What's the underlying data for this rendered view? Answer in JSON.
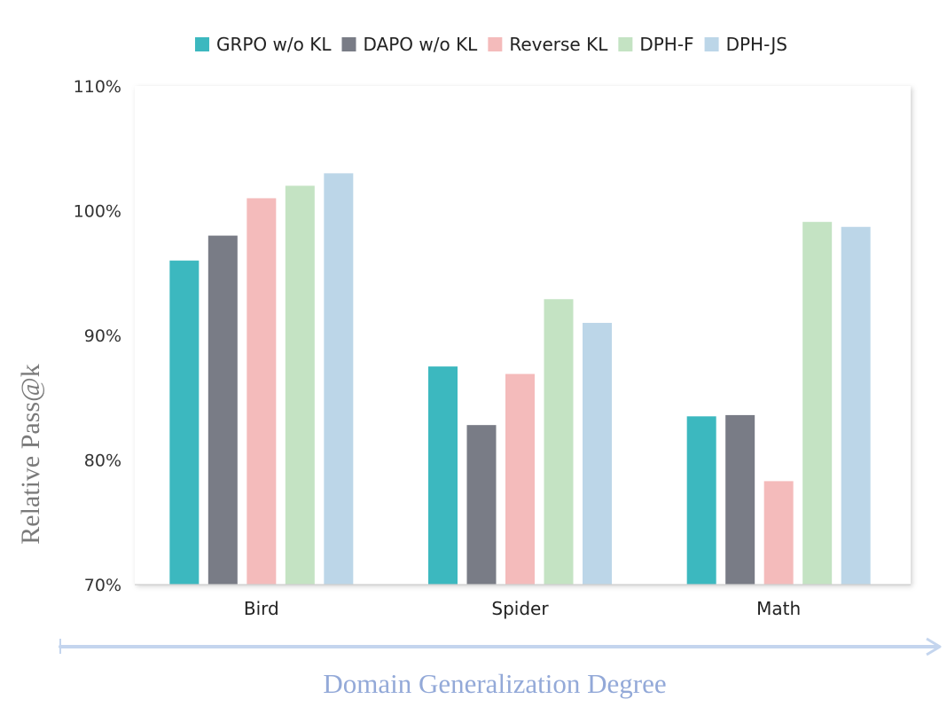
{
  "chart_data": {
    "type": "bar",
    "title": "",
    "categories": [
      "Bird",
      "Spider",
      "Math"
    ],
    "series": [
      {
        "name": "GRPO w/o KL",
        "color": "#3cb8bf",
        "values": [
          96.0,
          87.5,
          83.5
        ]
      },
      {
        "name": "DAPO w/o KL",
        "color": "#797c86",
        "values": [
          98.0,
          82.8,
          83.6
        ]
      },
      {
        "name": "Reverse KL",
        "color": "#f4bbbb",
        "values": [
          101.0,
          86.9,
          78.3
        ]
      },
      {
        "name": "DPH-F",
        "color": "#c4e3c3",
        "values": [
          102.0,
          92.9,
          99.1
        ]
      },
      {
        "name": "DPH-JS",
        "color": "#bcd6e8",
        "values": [
          103.0,
          91.0,
          98.7
        ]
      }
    ],
    "ylabel": "Relative Pass@k",
    "xlabel": "Domain Generalization Degree",
    "ylim": [
      70,
      110
    ],
    "yticks": [
      70,
      80,
      90,
      100,
      110
    ],
    "ytick_labels": [
      "70%",
      "80%",
      "90%",
      "100%",
      "110%"
    ],
    "legend_position": "top",
    "grid": false
  }
}
